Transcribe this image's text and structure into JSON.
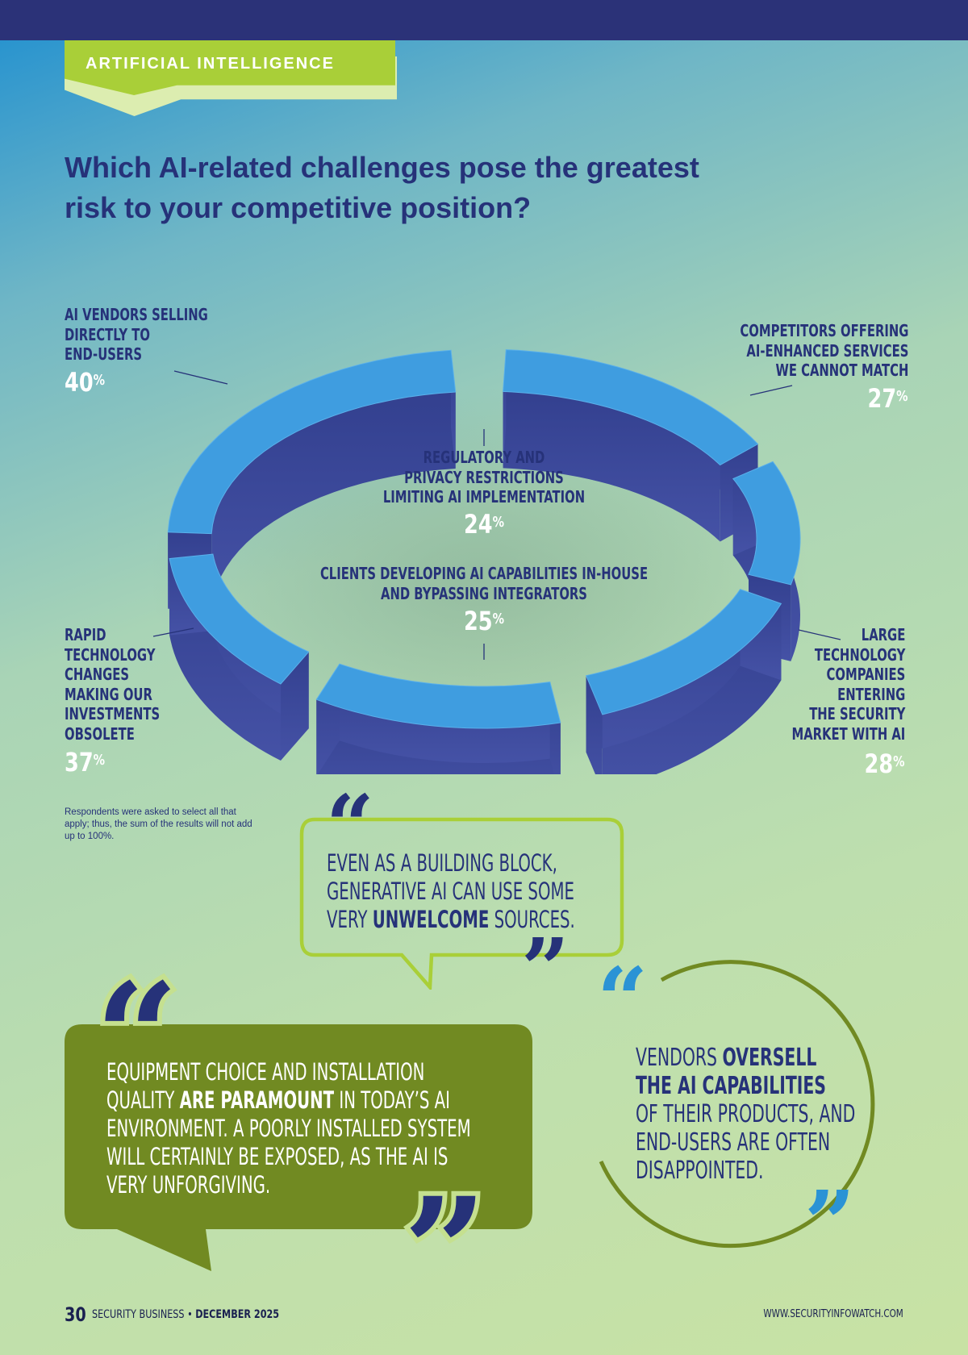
{
  "section": {
    "label": "ARTIFICIAL INTELLIGENCE"
  },
  "headline": {
    "line1": "Which AI-related challenges pose the greatest",
    "line2": "risk to your competitive position?"
  },
  "results": [
    {
      "id": "ai-vendors",
      "lines": [
        "AI VENDORS SELLING",
        "DIRECTLY TO",
        "END-USERS"
      ],
      "value": 40,
      "value_text": "40"
    },
    {
      "id": "competitors",
      "lines": [
        "COMPETITORS OFFERING",
        "AI-ENHANCED SERVICES",
        "WE CANNOT MATCH"
      ],
      "value": 27,
      "value_text": "27"
    },
    {
      "id": "regulatory",
      "lines": [
        "REGULATORY AND",
        "PRIVACY RESTRICTIONS",
        "LIMITING AI IMPLEMENTATION"
      ],
      "value": 24,
      "value_text": "24"
    },
    {
      "id": "clients",
      "lines": [
        "CLIENTS DEVELOPING AI CAPABILITIES IN-HOUSE",
        "AND BYPASSING INTEGRATORS"
      ],
      "value": 25,
      "value_text": "25"
    },
    {
      "id": "rapid-tech",
      "lines": [
        "RAPID",
        "TECHNOLOGY",
        "CHANGES",
        "MAKING OUR",
        "INVESTMENTS",
        "OBSOLETE"
      ],
      "value": 37,
      "value_text": "37"
    },
    {
      "id": "large-tech",
      "lines": [
        "LARGE",
        "TECHNOLOGY",
        "COMPANIES",
        "ENTERING",
        "THE SECURITY",
        "MARKET WITH AI"
      ],
      "value": 28,
      "value_text": "28"
    }
  ],
  "percent_sign": "%",
  "footnote": "Respondents were asked to select all that apply; thus, the sum of the results will not add up to 100%.",
  "quotes": {
    "q1": {
      "line1": "EVEN AS A BUILDING BLOCK,",
      "line2": "GENERATIVE AI CAN USE SOME",
      "line3_pre": "VERY ",
      "line3_bold": "UNWELCOME",
      "line3_post": " SOURCES."
    },
    "q2": {
      "line1": "EQUIPMENT CHOICE AND INSTALLATION",
      "line2_pre": "QUALITY ",
      "line2_bold": "ARE PARAMOUNT",
      "line2_post": " IN TODAY’S AI",
      "line3": "ENVIRONMENT. A POORLY INSTALLED SYSTEM",
      "line4": "WILL CERTAINLY BE EXPOSED, AS THE AI IS",
      "line5": "VERY UNFORGIVING."
    },
    "q3": {
      "line1_pre": "VENDORS ",
      "line1_bold": "OVERSELL",
      "line2_bold": "THE AI CAPABILITIES",
      "line3": "OF THEIR PRODUCTS, AND",
      "line4": "END-USERS ARE OFTEN",
      "line5": "DISAPPOINTED."
    }
  },
  "footer": {
    "page_number": "30",
    "publication": "SECURITY BUSINESS",
    "separator": "•",
    "issue": "DECEMBER 2025",
    "website": "WWW.SECURITYINFOWATCH.COM"
  },
  "colors": {
    "navy": "#263279",
    "ring_top": "#3f9de0",
    "ring_side": "#3b4a9e",
    "lime": "#a9cf38",
    "olive": "#718a22",
    "cyan": "#2a93d5"
  }
}
